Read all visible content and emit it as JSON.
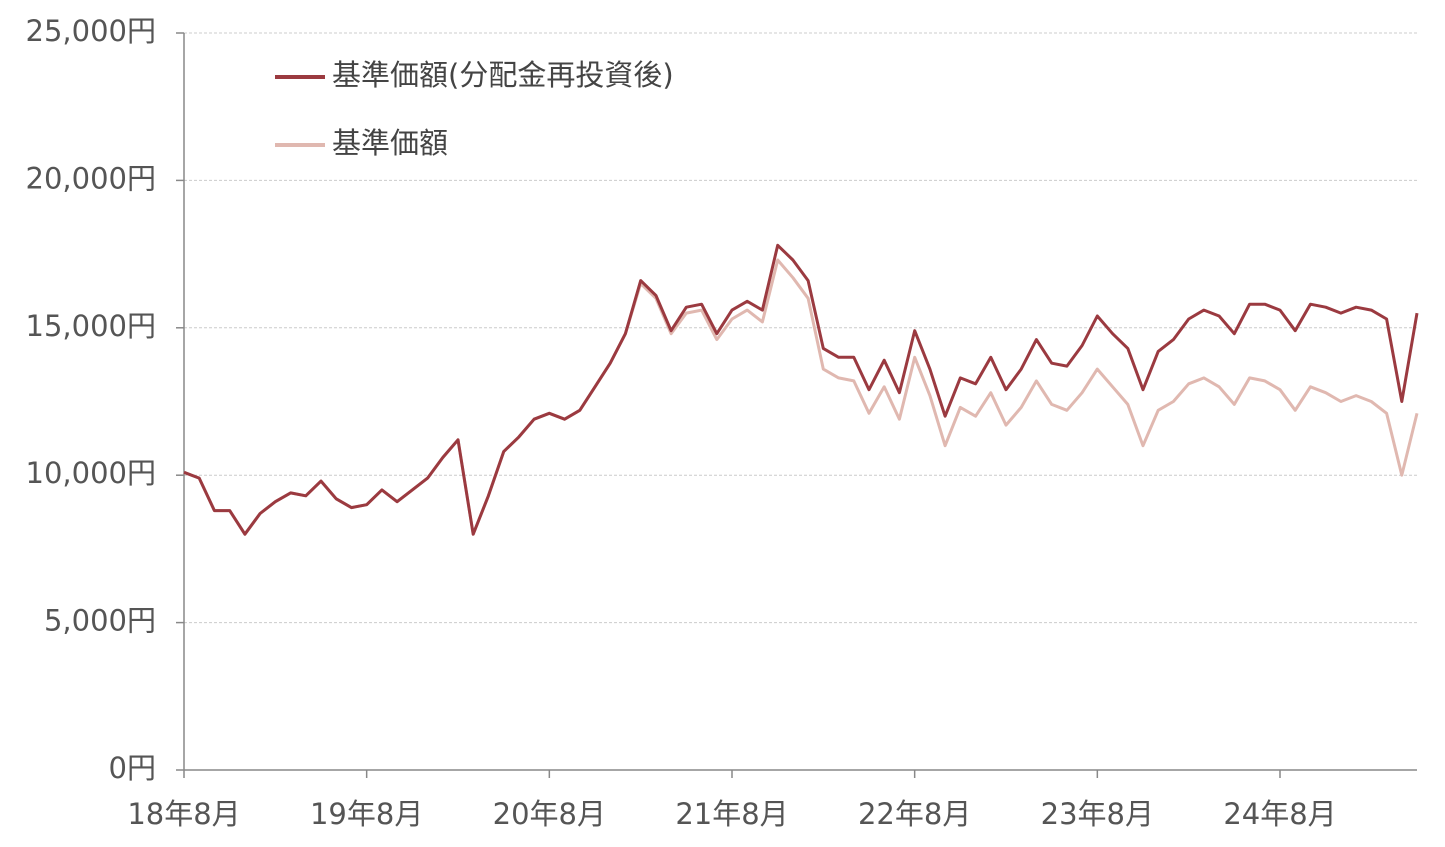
{
  "chart_data": {
    "type": "line",
    "categories": [
      "18年8月",
      null,
      null,
      null,
      null,
      null,
      null,
      null,
      null,
      null,
      null,
      null,
      "19年8月",
      null,
      null,
      null,
      null,
      null,
      null,
      null,
      null,
      null,
      null,
      null,
      "20年8月",
      null,
      null,
      null,
      null,
      null,
      null,
      null,
      null,
      null,
      null,
      null,
      "21年8月",
      null,
      null,
      null,
      null,
      null,
      null,
      null,
      null,
      null,
      null,
      null,
      "22年8月",
      null,
      null,
      null,
      null,
      null,
      null,
      null,
      null,
      null,
      null,
      null,
      "23年8月",
      null,
      null,
      null,
      null,
      null,
      null,
      null,
      null,
      null,
      null,
      null,
      "24年8月",
      null,
      null,
      null,
      null,
      null,
      null,
      null,
      null,
      null
    ],
    "series": [
      {
        "name": "基準価額(分配金再投資後)",
        "color": "#9b3a40",
        "values": [
          10100,
          9900,
          8800,
          8800,
          8000,
          8700,
          9100,
          9400,
          9300,
          9800,
          9200,
          8900,
          9000,
          9500,
          9100,
          9500,
          9900,
          10600,
          11200,
          8000,
          9300,
          10800,
          11300,
          11900,
          12100,
          11900,
          12200,
          13000,
          13800,
          14800,
          16600,
          16100,
          14900,
          15700,
          15800,
          14800,
          15600,
          15900,
          15600,
          17800,
          17300,
          16600,
          14300,
          14000,
          14000,
          12900,
          13900,
          12800,
          14900,
          13600,
          12000,
          13300,
          13100,
          14000,
          12900,
          13600,
          14600,
          13800,
          13700,
          14400,
          15400,
          14800,
          14300,
          12900,
          14200,
          14600,
          15300,
          15600,
          15400,
          14800,
          15800,
          15800,
          15600,
          14900,
          15800,
          15700,
          15500,
          15700,
          15600,
          15300,
          12500,
          15500
        ]
      },
      {
        "name": "基準価額",
        "color": "#e0b8b0",
        "values": [
          10100,
          9900,
          8800,
          8800,
          8000,
          8700,
          9100,
          9400,
          9300,
          9800,
          9200,
          8900,
          9000,
          9500,
          9100,
          9500,
          9900,
          10600,
          11200,
          8000,
          9300,
          10800,
          11300,
          11900,
          12100,
          11900,
          12200,
          13000,
          13800,
          14800,
          16500,
          16000,
          14800,
          15500,
          15600,
          14600,
          15300,
          15600,
          15200,
          17300,
          16700,
          16000,
          13600,
          13300,
          13200,
          12100,
          13000,
          11900,
          14000,
          12700,
          11000,
          12300,
          12000,
          12800,
          11700,
          12300,
          13200,
          12400,
          12200,
          12800,
          13600,
          13000,
          12400,
          11000,
          12200,
          12500,
          13100,
          13300,
          13000,
          12400,
          13300,
          13200,
          12900,
          12200,
          13000,
          12800,
          12500,
          12700,
          12500,
          12100,
          10000,
          12100
        ]
      }
    ],
    "ylim": [
      0,
      25000
    ],
    "yticks": [
      {
        "value": 0,
        "label": "0円"
      },
      {
        "value": 5000,
        "label": "5,000円"
      },
      {
        "value": 10000,
        "label": "10,000円"
      },
      {
        "value": 15000,
        "label": "15,000円"
      },
      {
        "value": 20000,
        "label": "20,000円"
      },
      {
        "value": 25000,
        "label": "25,000円"
      }
    ],
    "grid": true,
    "legend": "top-left"
  }
}
